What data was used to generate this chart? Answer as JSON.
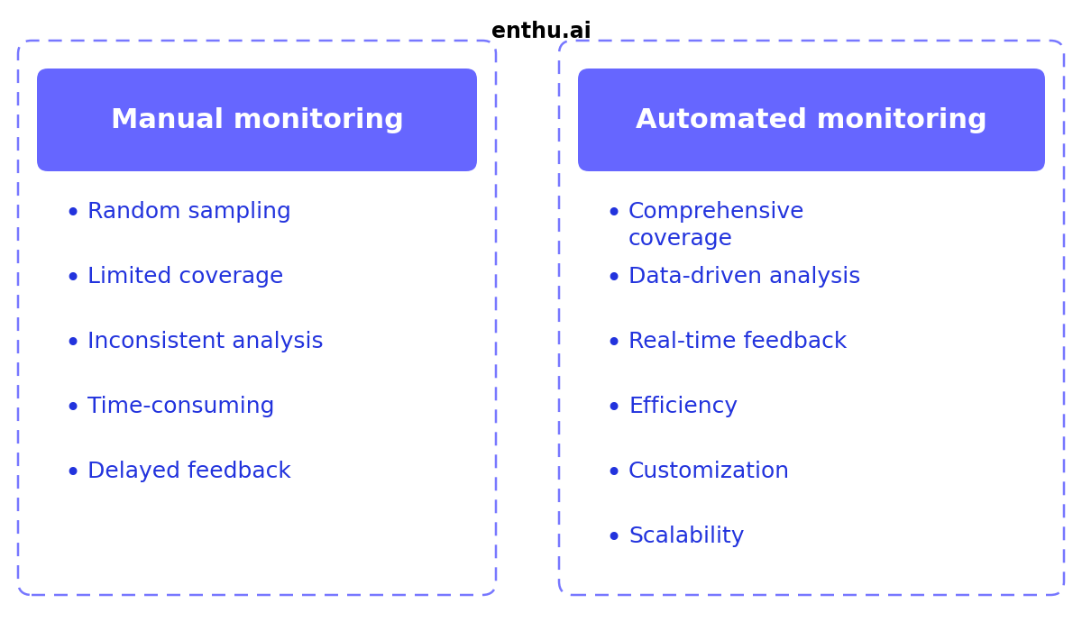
{
  "title": "enthu.ai",
  "title_fontsize": 17,
  "title_fontweight": "bold",
  "background_color": "#ffffff",
  "card_border_color": "#7777ff",
  "card_fill_color": "#ffffff",
  "header_fill_color": "#6666ff",
  "header_text_color": "#ffffff",
  "header_fontsize": 22,
  "header_fontweight": "bold",
  "bullet_text_color": "#2233dd",
  "bullet_fontsize": 18,
  "left_header": "Manual monitoring",
  "right_header": "Automated monitoring",
  "left_bullets": [
    "Random sampling",
    "Limited coverage",
    "Inconsistent analysis",
    "Time-consuming",
    "Delayed feedback"
  ],
  "right_bullets": [
    "Comprehensive\ncoverage",
    "Data-driven analysis",
    "Real-time feedback",
    "Efficiency",
    "Customization",
    "Scalability"
  ],
  "fig_width": 12.0,
  "fig_height": 7.0,
  "fig_dpi": 100
}
